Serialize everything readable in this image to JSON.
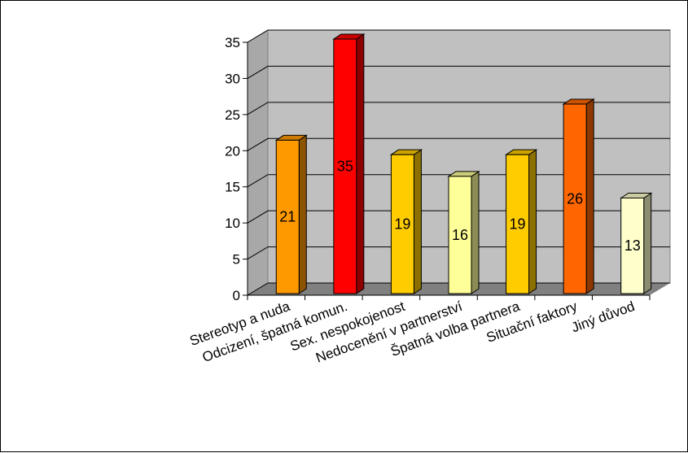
{
  "chart_data": {
    "type": "bar",
    "categories": [
      "Stereotyp a nuda",
      "Odcizení, špatná komun.",
      "Sex. nespokojenost",
      "Nedocenění v partnerství",
      "Špatná volba partnera",
      "Situační faktory",
      "Jiný důvod"
    ],
    "values": [
      21,
      35,
      19,
      16,
      19,
      26,
      13
    ],
    "data_labels": [
      "21",
      "35",
      "19",
      "16",
      "19",
      "26",
      "13"
    ],
    "colors": [
      "#FF9900",
      "#FF0000",
      "#FFCC00",
      "#FFFF99",
      "#FFCC00",
      "#FF6600",
      "#FFFFCC"
    ],
    "ylim": [
      0,
      35
    ],
    "yticks": [
      "0",
      "5",
      "10",
      "15",
      "20",
      "25",
      "30",
      "35"
    ],
    "grid": true,
    "style": "3d-column",
    "wall_color": "#C0C0C0",
    "floor_color": "#808080"
  }
}
